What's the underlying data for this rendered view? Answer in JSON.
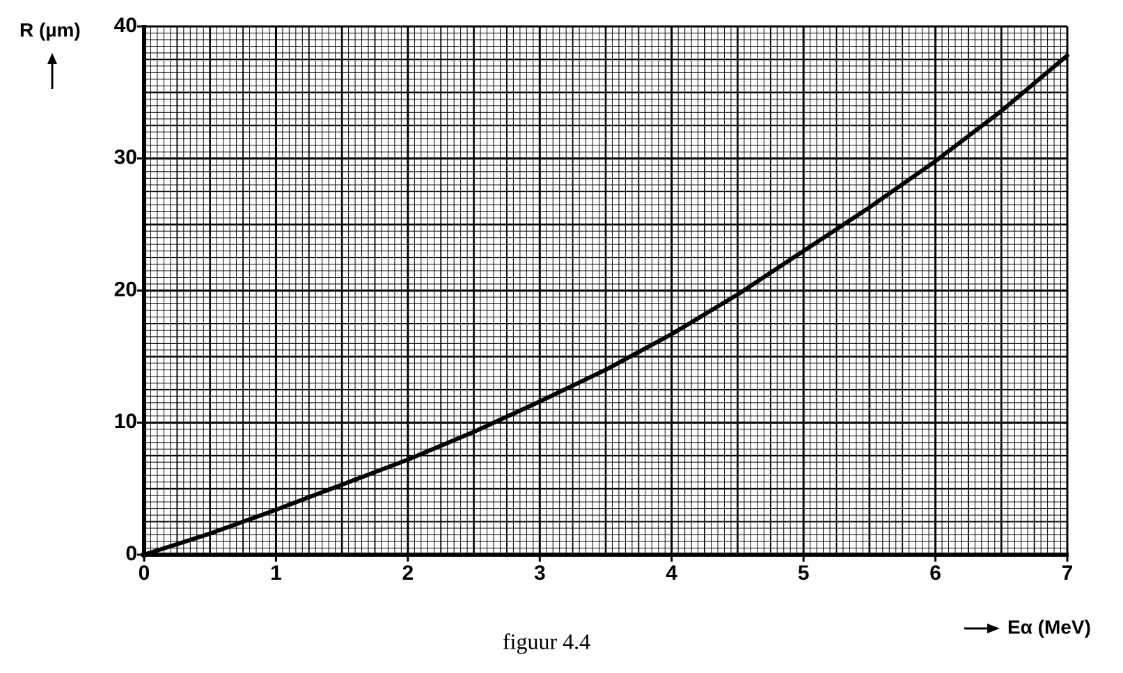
{
  "chart_data": {
    "type": "line",
    "caption": "figuur 4.4",
    "xlabel": "Eα (MeV)",
    "ylabel": "R (µm)",
    "x": [
      0,
      0.5,
      1,
      1.5,
      2,
      2.5,
      3,
      3.5,
      4,
      4.5,
      5,
      5.5,
      6,
      6.5,
      7
    ],
    "series": [
      {
        "color": "#000000",
        "values": [
          0,
          1.6,
          3.4,
          5.3,
          7.2,
          9.3,
          11.6,
          14.0,
          16.7,
          19.7,
          23.0,
          26.3,
          29.8,
          33.6,
          37.8
        ]
      }
    ],
    "xlim": [
      0,
      7
    ],
    "ylim": [
      0,
      40
    ],
    "xticks": [
      0,
      1,
      2,
      3,
      4,
      5,
      6,
      7
    ],
    "yticks": [
      0,
      10,
      20,
      30,
      40
    ],
    "grid": true
  }
}
